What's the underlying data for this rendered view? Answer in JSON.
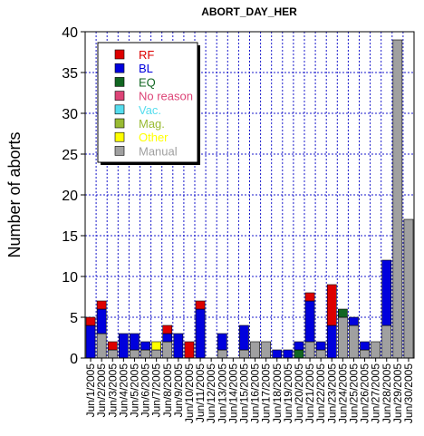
{
  "chart_data": {
    "type": "bar",
    "stacked": true,
    "title": "ABORT_DAY_HER",
    "xlabel": "",
    "ylabel": "Number of aborts",
    "ylim": [
      0,
      40
    ],
    "yticks": [
      "0",
      "5",
      "10",
      "15",
      "20",
      "25",
      "30",
      "35",
      "40"
    ],
    "grid": true,
    "legend_position": "top-left",
    "categories": [
      "Jun/1/2005",
      "Jun/2/2005",
      "Jun/3/2005",
      "Jun/4/2005",
      "Jun/5/2005",
      "Jun/6/2005",
      "Jun/7/2005",
      "Jun/8/2005",
      "Jun/9/2005",
      "Jun/10/2005",
      "Jun/11/2005",
      "Jun/12/2005",
      "Jun/13/2005",
      "Jun/14/2005",
      "Jun/15/2005",
      "Jun/16/2005",
      "Jun/17/2005",
      "Jun/18/2005",
      "Jun/19/2005",
      "Jun/20/2005",
      "Jun/21/2005",
      "Jun/22/2005",
      "Jun/23/2005",
      "Jun/24/2005",
      "Jun/25/2005",
      "Jun/26/2005",
      "Jun/27/2005",
      "Jun/28/2005",
      "Jun/29/2005",
      "Jun/30/2005"
    ],
    "series": [
      {
        "name": "Manual",
        "color": "#a0a0a0",
        "values": [
          0,
          3,
          1,
          0,
          1,
          1,
          1,
          2,
          0,
          0,
          0,
          0,
          1,
          0,
          1,
          2,
          2,
          0,
          0,
          0,
          2,
          1,
          0,
          5,
          4,
          1,
          2,
          4,
          39,
          17
        ]
      },
      {
        "name": "Other",
        "color": "#ffff00",
        "values": [
          0,
          0,
          0,
          0,
          0,
          0,
          1,
          0,
          0,
          0,
          0,
          0,
          0,
          0,
          0,
          0,
          0,
          0,
          0,
          0,
          0,
          0,
          0,
          0,
          0,
          0,
          0,
          0,
          0,
          0
        ]
      },
      {
        "name": "Mag.",
        "color": "#99bb33",
        "values": [
          0,
          0,
          0,
          0,
          0,
          0,
          0,
          0,
          0,
          0,
          0,
          0,
          0,
          0,
          0,
          0,
          0,
          0,
          0,
          0,
          0,
          0,
          0,
          0,
          0,
          0,
          0,
          0,
          0,
          0
        ]
      },
      {
        "name": "Vac.",
        "color": "#55ddee",
        "values": [
          0,
          0,
          0,
          0,
          0,
          0,
          0,
          0,
          0,
          0,
          0,
          0,
          0,
          0,
          0,
          0,
          0,
          0,
          0,
          0,
          0,
          0,
          0,
          0,
          0,
          0,
          0,
          0,
          0,
          0
        ]
      },
      {
        "name": "No reason",
        "color": "#dd4477",
        "values": [
          0,
          0,
          0,
          0,
          0,
          0,
          0,
          0,
          0,
          0,
          0,
          0,
          0,
          0,
          0,
          0,
          0,
          0,
          0,
          0,
          0,
          0,
          0,
          0,
          0,
          0,
          0,
          0,
          0,
          0
        ]
      },
      {
        "name": "EQ",
        "color": "#116622",
        "values": [
          0,
          0,
          0,
          0,
          0,
          0,
          0,
          0,
          0,
          0,
          0,
          0,
          0,
          0,
          0,
          0,
          0,
          0,
          0,
          1,
          0,
          0,
          0,
          1,
          0,
          0,
          0,
          0,
          0,
          0
        ]
      },
      {
        "name": "BL",
        "color": "#0000dd",
        "values": [
          4,
          3,
          0,
          3,
          2,
          1,
          0,
          1,
          3,
          0,
          6,
          0,
          2,
          0,
          3,
          0,
          0,
          1,
          1,
          1,
          5,
          1,
          4,
          0,
          1,
          1,
          0,
          8,
          0,
          0
        ]
      },
      {
        "name": "RF",
        "color": "#dd0000",
        "values": [
          1,
          1,
          1,
          0,
          0,
          0,
          0,
          1,
          0,
          2,
          1,
          0,
          0,
          0,
          0,
          0,
          0,
          0,
          0,
          0,
          1,
          0,
          5,
          0,
          0,
          0,
          0,
          0,
          0,
          0
        ]
      }
    ],
    "legend_order": [
      "RF",
      "BL",
      "EQ",
      "No reason",
      "Vac.",
      "Mag.",
      "Other",
      "Manual"
    ]
  }
}
